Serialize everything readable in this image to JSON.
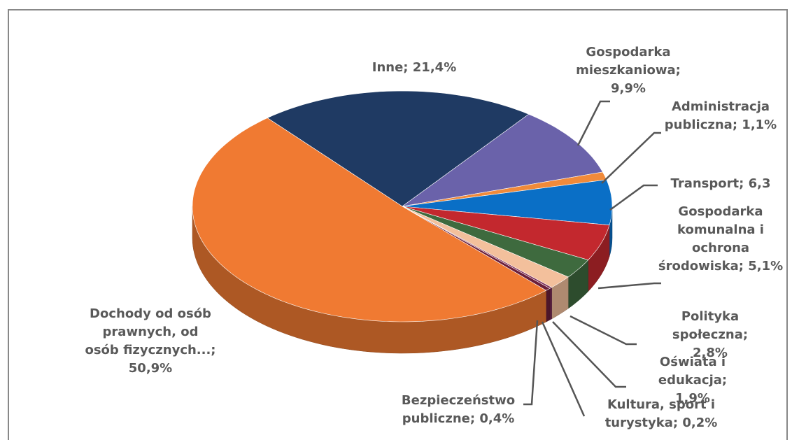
{
  "chart_data": {
    "type": "pie",
    "categories": [
      "Inne;",
      "Gospodarka mieszkaniowa;",
      "Administracja publiczna;",
      "Transport;",
      "Gospodarka komunalna i ochrona środowiska;",
      "Polityka społeczna;",
      "Oświata i edukacja;",
      "Kultura, sport i turystyka;",
      "Bezpieczeństwo publiczne;",
      "Dochody od osób prawnych, od osób fizycznych...;"
    ],
    "values": [
      21.4,
      9.9,
      1.1,
      6.3,
      5.1,
      2.8,
      1.9,
      0.2,
      0.4,
      50.9
    ],
    "value_labels": [
      "21,4%",
      "9,9%",
      "1,1%",
      "6,3",
      "5,1%",
      "2,8%",
      "1,9%",
      "0,2%",
      "0,4%",
      "50,9%"
    ],
    "colors": [
      "#1f3a63",
      "#6a62aa",
      "#f08a3a",
      "#0a6fc6",
      "#c3282e",
      "#3e6a3e",
      "#f3c09c",
      "#7a2a55",
      "#6b1f3a",
      "#f07a32"
    ]
  }
}
